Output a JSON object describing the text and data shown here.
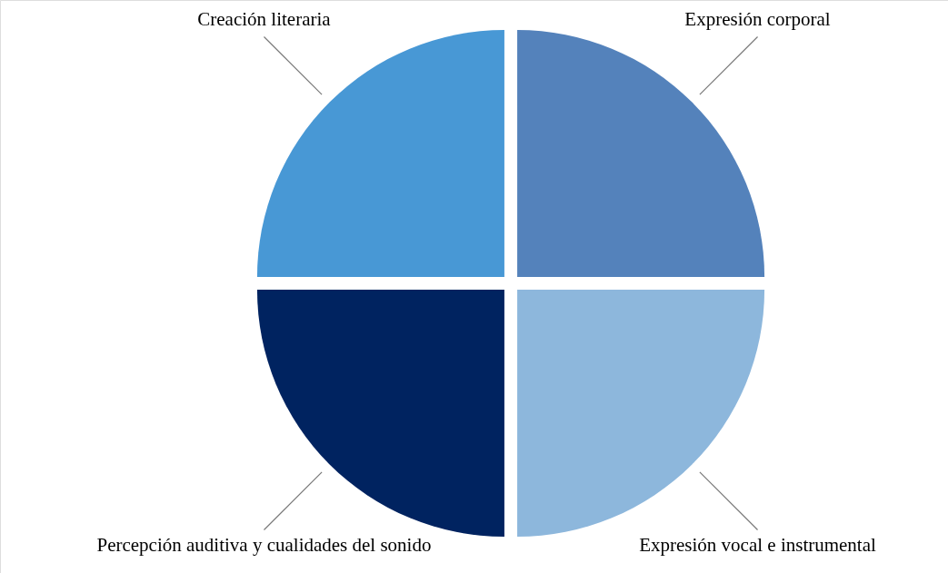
{
  "chart_data": {
    "type": "pie",
    "categories": [
      "Expresión corporal",
      "Expresión vocal e instrumental",
      "Percepción auditiva y cualidades del sonido",
      "Creación literaria"
    ],
    "values": [
      25,
      25,
      25,
      25
    ],
    "colors": [
      "#5482bb",
      "#8db7dc",
      "#002360",
      "#4898d5"
    ]
  }
}
